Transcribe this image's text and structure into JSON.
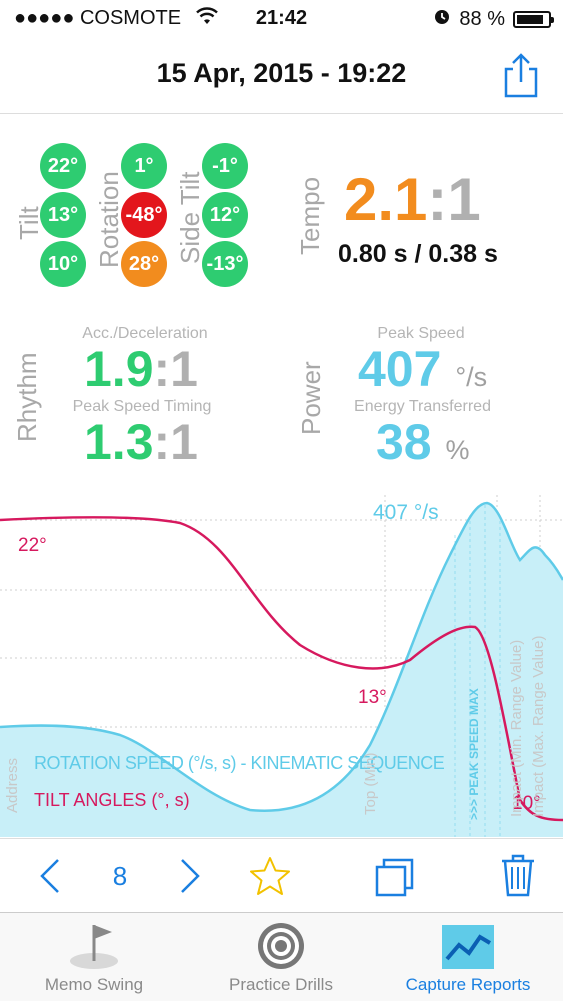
{
  "status": {
    "carrier": "●●●●● COSMOTE",
    "time": "21:42",
    "battery": "88 %",
    "battery_level": 0.88
  },
  "header": {
    "title": "15 Apr, 2015 - 19:22"
  },
  "tilt": {
    "label": "Tilt",
    "values": [
      "22°",
      "13°",
      "10°"
    ]
  },
  "rotation": {
    "label": "Rotation",
    "values": [
      "1°",
      "-48°",
      "28°"
    ]
  },
  "side_tilt": {
    "label": "Side Tilt",
    "values": [
      "-1°",
      "12°",
      "-13°"
    ]
  },
  "colors": {
    "green": "#2ecc71",
    "red": "#e3161c",
    "orange": "#f28c1e",
    "blue": "#5fcbe8",
    "magenta": "#d6195e",
    "ios_blue": "#1a7fe0",
    "gray": "#b0b0b0"
  },
  "tempo": {
    "label": "Tempo",
    "ratio_left": "2.1",
    "ratio_right": ":1",
    "times": "0.80 s / 0.38 s"
  },
  "rhythm": {
    "label": "Rhythm",
    "acc_label": "Acc./Deceleration",
    "acc_left": "1.9",
    "acc_right": ":1",
    "peak_label": "Peak Speed Timing",
    "peak_left": "1.3",
    "peak_right": ":1"
  },
  "power": {
    "label": "Power",
    "peak_label": "Peak Speed",
    "peak_value": "407",
    "peak_unit": "°/s",
    "energy_label": "Energy Transferred",
    "energy_value": "38",
    "energy_unit": "%"
  },
  "chart": {
    "peak_label": "407 °/s",
    "tilt_start": "22°",
    "tilt_mid": "13°",
    "tilt_end": "10°",
    "legend_rotation": "ROTATION SPEED (°/s, s) - KINEMATIC SEQUENCE",
    "legend_tilt": "TILT ANGLES (°, s)",
    "marker_address": "Address",
    "marker_top": "Top (Min)",
    "marker_peak": ">>> PEAK SPEED MAX",
    "marker_impact": "Impact (Min. Range Value)",
    "marker_impact2": "Impact (Max. Range Value)"
  },
  "toolbar": {
    "page": "8"
  },
  "tabs": [
    {
      "label": "Memo Swing",
      "icon": "golf-flag-icon"
    },
    {
      "label": "Practice Drills",
      "icon": "target-icon"
    },
    {
      "label": "Capture Reports",
      "icon": "chart-icon"
    }
  ]
}
